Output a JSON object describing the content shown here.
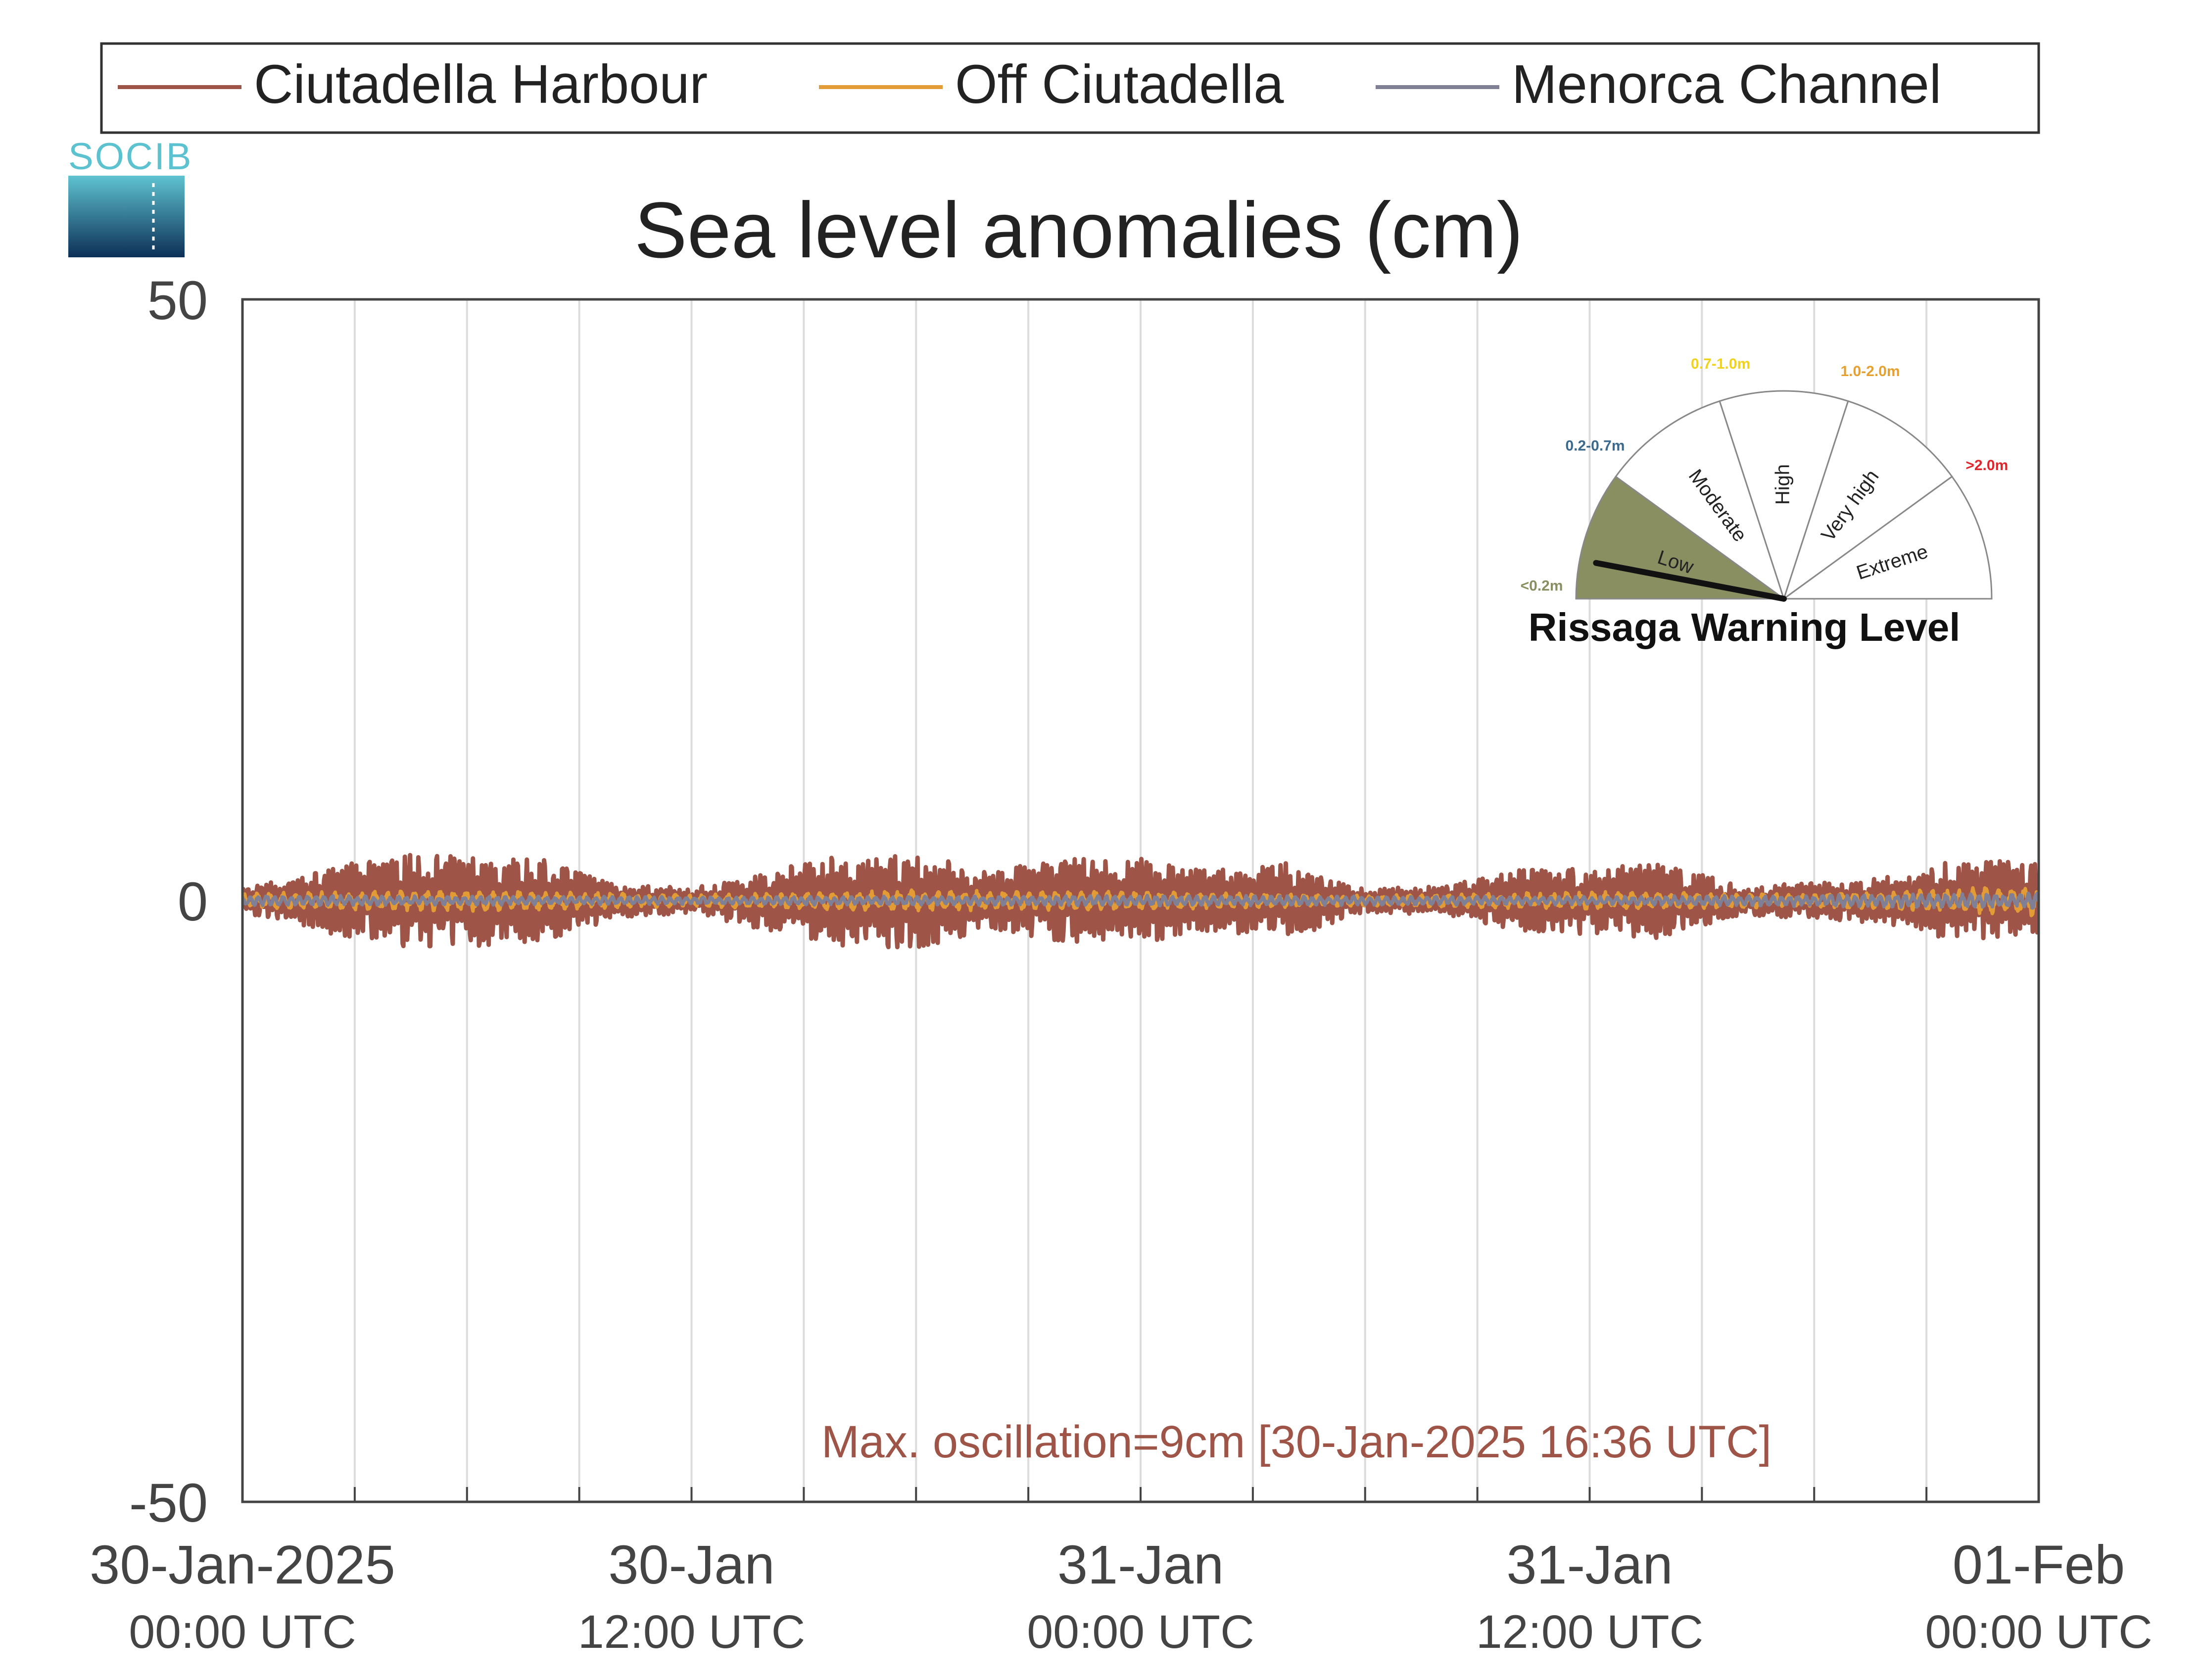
{
  "chart_data": {
    "type": "line",
    "title": "Sea level anomalies (cm)",
    "ylim": [
      -50,
      50
    ],
    "yticks": [
      -50,
      0,
      50
    ],
    "xlim_hours": [
      0,
      48
    ],
    "xticks": [
      {
        "line1": "30-Jan-2025",
        "line2": "00:00 UTC"
      },
      {
        "line1": "30-Jan",
        "line2": "12:00 UTC"
      },
      {
        "line1": "31-Jan",
        "line2": "00:00 UTC"
      },
      {
        "line1": "31-Jan",
        "line2": "12:00 UTC"
      },
      {
        "line1": "01-Feb",
        "line2": "00:00 UTC"
      }
    ],
    "grid": "vertical, every 3 hours",
    "legend_position": "top",
    "series": [
      {
        "name": "Ciutadella Harbour",
        "color": "#9e5446",
        "envelope_hours": [
          0,
          2,
          4,
          6,
          8,
          10,
          12,
          14,
          16,
          18,
          20,
          22,
          24,
          26,
          28,
          30,
          32,
          34,
          36,
          38,
          40,
          42,
          44,
          46,
          48
        ],
        "envelope_cm": [
          1.0,
          2.5,
          3.8,
          3.8,
          3.5,
          1.5,
          1.0,
          2.5,
          3.8,
          4.0,
          2.5,
          3.5,
          3.5,
          2.5,
          3.2,
          1.0,
          1.2,
          2.5,
          2.8,
          3.2,
          1.2,
          1.5,
          2.0,
          3.5,
          3.2
        ]
      },
      {
        "name": "Off Ciutadella",
        "color": "#e39b35",
        "envelope_hours": [
          0,
          6,
          12,
          18,
          24,
          30,
          36,
          42,
          48
        ],
        "envelope_cm": [
          0.6,
          0.8,
          0.5,
          0.8,
          0.7,
          0.4,
          0.7,
          0.5,
          1.2
        ]
      },
      {
        "name": "Menorca Channel",
        "color": "#7f7f95",
        "envelope_hours": [
          0,
          12,
          24,
          36,
          48
        ],
        "envelope_cm": [
          0.4,
          0.3,
          0.4,
          0.3,
          0.6
        ]
      }
    ],
    "annotation": "Max. oscillation=9cm [30-Jan-2025 16:36 UTC]",
    "annotation_color": "#9e5446"
  },
  "logo": {
    "text": "SOCIB"
  },
  "gauge": {
    "title": "Rissaga Warning Level",
    "needle_level": "Low",
    "needle_fraction": 0.06,
    "levels": [
      {
        "label": "Low",
        "range": "<0.2m",
        "color": "#8a8f62",
        "active": true
      },
      {
        "label": "Moderate",
        "range": "0.2-0.7m",
        "color": "#3c6a8e",
        "active": false
      },
      {
        "label": "High",
        "range": "0.7-1.0m",
        "color": "#f0d21c",
        "active": false
      },
      {
        "label": "Very high",
        "range": "1.0-2.0m",
        "color": "#e6a030",
        "active": false
      },
      {
        "label": "Extreme",
        "range": ">2.0m",
        "color": "#e0262b",
        "active": false
      }
    ]
  }
}
